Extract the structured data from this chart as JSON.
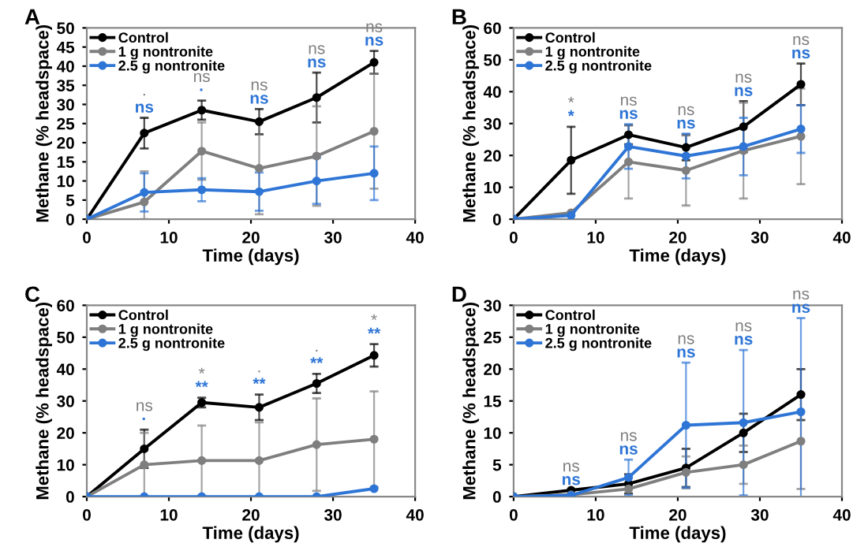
{
  "chart_data": [
    {
      "type": "line",
      "title": "A",
      "xlabel": "Time (days)",
      "ylabel": "Methane (% headspace)",
      "x": [
        0,
        7,
        14,
        21,
        28,
        35
      ],
      "xlim": [
        0,
        40
      ],
      "xticks": [
        0,
        10,
        20,
        30,
        40
      ],
      "ylim": [
        0,
        50
      ],
      "yticks": [
        0,
        5,
        10,
        15,
        20,
        25,
        30,
        35,
        40,
        45,
        50
      ],
      "marker": "circle",
      "legend": "top left",
      "grid": false,
      "series": [
        {
          "name": "Control",
          "color": "#000000",
          "values": [
            0,
            22.5,
            28.5,
            25.5,
            31.8,
            41
          ],
          "errors": [
            null,
            4,
            2.5,
            3.3,
            6.5,
            3
          ]
        },
        {
          "name": "1 g nontronite",
          "color": "#7f7f7f",
          "values": [
            0,
            4.5,
            17.8,
            13.3,
            16.5,
            23
          ],
          "errors": [
            null,
            [
              0,
              12.5
            ],
            7.5,
            12,
            13,
            15
          ]
        },
        {
          "name": "2.5 g nontronite",
          "color": "#2e75d6",
          "values": [
            0,
            7,
            7.7,
            7.2,
            10,
            12
          ],
          "errors": [
            null,
            5,
            3,
            5,
            6,
            7
          ]
        }
      ],
      "annotations": [
        "·",
        "ns",
        "ns",
        "·",
        "ns",
        "ns",
        "ns",
        "ns",
        "ns",
        "ns"
      ]
    },
    {
      "type": "line",
      "title": "B",
      "xlabel": "Time (days)",
      "ylabel": "Methane (% headspace)",
      "x": [
        0,
        7,
        14,
        21,
        28,
        35
      ],
      "xlim": [
        0,
        40
      ],
      "xticks": [
        0,
        10,
        20,
        30,
        40
      ],
      "ylim": [
        0,
        60
      ],
      "yticks": [
        0,
        10,
        20,
        30,
        40,
        50,
        60
      ],
      "marker": "circle",
      "legend": "top left",
      "grid": false,
      "series": [
        {
          "name": "Control",
          "color": "#000000",
          "values": [
            0,
            18.5,
            26.5,
            22.5,
            29,
            42.3
          ],
          "errors": [
            null,
            10.5,
            3,
            4,
            8,
            6.5
          ]
        },
        {
          "name": "1 g nontronite",
          "color": "#7f7f7f",
          "values": [
            0,
            2,
            18,
            15.3,
            21.5,
            26
          ],
          "errors": [
            null,
            null,
            11.5,
            11,
            15,
            15
          ]
        },
        {
          "name": "2.5 g nontronite",
          "color": "#2e75d6",
          "values": [
            0,
            1.2,
            22.8,
            19.8,
            22.8,
            28.3
          ],
          "errors": [
            null,
            null,
            7,
            7,
            9,
            7.5
          ]
        }
      ],
      "annotations": [
        "*",
        "*",
        "ns",
        "ns",
        "ns",
        "ns",
        "ns",
        "ns",
        "ns",
        "ns"
      ]
    },
    {
      "type": "line",
      "title": "C",
      "xlabel": "Time (days)",
      "ylabel": "Methane (% headspace)",
      "x": [
        0,
        7,
        14,
        21,
        28,
        35
      ],
      "xlim": [
        0,
        40
      ],
      "xticks": [
        0,
        10,
        20,
        30,
        40
      ],
      "ylim": [
        0,
        60
      ],
      "yticks": [
        0,
        10,
        20,
        30,
        40,
        50,
        60
      ],
      "marker": "circle",
      "legend": "top left",
      "grid": false,
      "series": [
        {
          "name": "Control",
          "color": "#000000",
          "values": [
            0,
            15,
            29.5,
            28,
            35.5,
            44.3
          ],
          "errors": [
            null,
            6,
            1.5,
            4,
            3,
            3.5
          ]
        },
        {
          "name": "1 g nontronite",
          "color": "#7f7f7f",
          "values": [
            0,
            10,
            11.3,
            11.3,
            16.3,
            18
          ],
          "errors": [
            null,
            10,
            11,
            12,
            14.5,
            15
          ]
        },
        {
          "name": "2.5 g nontronite",
          "color": "#2e75d6",
          "values": [
            0,
            0,
            0,
            0,
            0,
            2.5
          ],
          "errors": [
            null,
            null,
            null,
            null,
            null,
            null
          ]
        }
      ],
      "annotations": [
        "ns",
        "·",
        "*",
        "**",
        "·",
        "**",
        "·",
        "**",
        "*",
        "**"
      ]
    },
    {
      "type": "line",
      "title": "D",
      "xlabel": "Time (days)",
      "ylabel": "Methane (% headspace)",
      "x": [
        0,
        7,
        14,
        21,
        28,
        35
      ],
      "xlim": [
        0,
        40
      ],
      "xticks": [
        0,
        10,
        20,
        30,
        40
      ],
      "ylim": [
        0,
        30
      ],
      "yticks": [
        0,
        5,
        10,
        15,
        20,
        25,
        30
      ],
      "marker": "circle",
      "legend": "top left",
      "grid": false,
      "series": [
        {
          "name": "Control",
          "color": "#000000",
          "values": [
            0,
            1,
            2,
            4.5,
            10,
            16
          ],
          "errors": [
            null,
            null,
            1.5,
            3,
            3,
            4
          ]
        },
        {
          "name": "1 g nontronite",
          "color": "#7f7f7f",
          "values": [
            0,
            0.3,
            1.2,
            3.8,
            5,
            8.7
          ],
          "errors": [
            null,
            null,
            null,
            2.5,
            3,
            7.5
          ]
        },
        {
          "name": "2.5 g nontronite",
          "color": "#2e75d6",
          "values": [
            0,
            0.2,
            3,
            11.2,
            11.6,
            13.3
          ],
          "errors": [
            null,
            null,
            2.8,
            9.8,
            11.4,
            14.7
          ]
        }
      ],
      "annotations": [
        "ns",
        "ns",
        "ns",
        "ns",
        "ns",
        "ns",
        "ns",
        "ns",
        "ns",
        "ns"
      ]
    }
  ]
}
